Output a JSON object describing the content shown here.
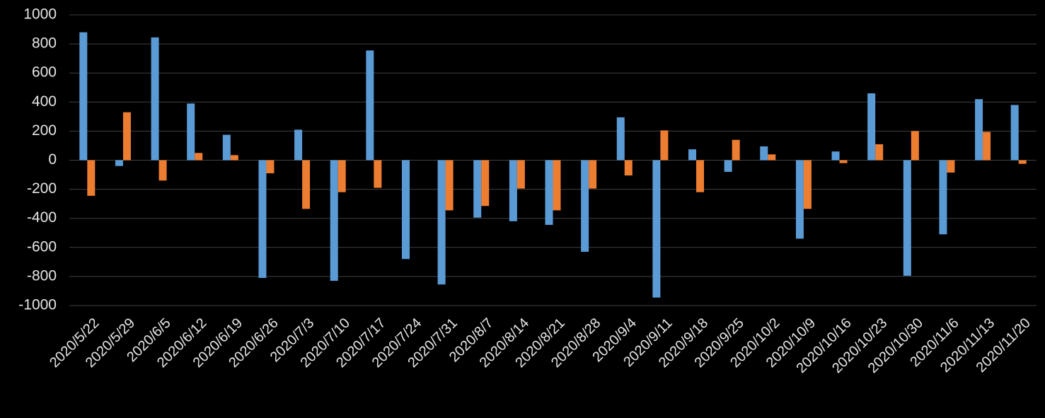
{
  "chart_data": {
    "type": "bar",
    "categories": [
      "2020/5/22",
      "2020/5/29",
      "2020/6/5",
      "2020/6/12",
      "2020/6/19",
      "2020/6/26",
      "2020/7/3",
      "2020/7/10",
      "2020/7/17",
      "2020/7/24",
      "2020/7/31",
      "2020/8/7",
      "2020/8/14",
      "2020/8/21",
      "2020/8/28",
      "2020/9/4",
      "2020/9/11",
      "2020/9/18",
      "2020/9/25",
      "2020/10/2",
      "2020/10/9",
      "2020/10/16",
      "2020/10/23",
      "2020/10/30",
      "2020/11/6",
      "2020/11/13",
      "2020/11/20"
    ],
    "series": [
      {
        "color": "#5b9bd5",
        "values": [
          880,
          -40,
          845,
          390,
          175,
          -810,
          210,
          -830,
          755,
          -680,
          -855,
          -395,
          -420,
          -445,
          -630,
          295,
          -945,
          75,
          -80,
          95,
          -540,
          60,
          460,
          -795,
          -510,
          420,
          380
        ]
      },
      {
        "color": "#ed7d31",
        "values": [
          -245,
          330,
          -140,
          50,
          35,
          -90,
          -335,
          -220,
          -190,
          null,
          -345,
          -315,
          -195,
          -345,
          -195,
          -105,
          205,
          -220,
          140,
          40,
          -335,
          -20,
          110,
          200,
          -85,
          195,
          -25
        ]
      }
    ],
    "ylim": [
      -1000,
      1000
    ],
    "yticks": [
      -1000,
      -800,
      -600,
      -400,
      -200,
      0,
      200,
      400,
      600,
      800,
      1000
    ],
    "grid": true
  }
}
